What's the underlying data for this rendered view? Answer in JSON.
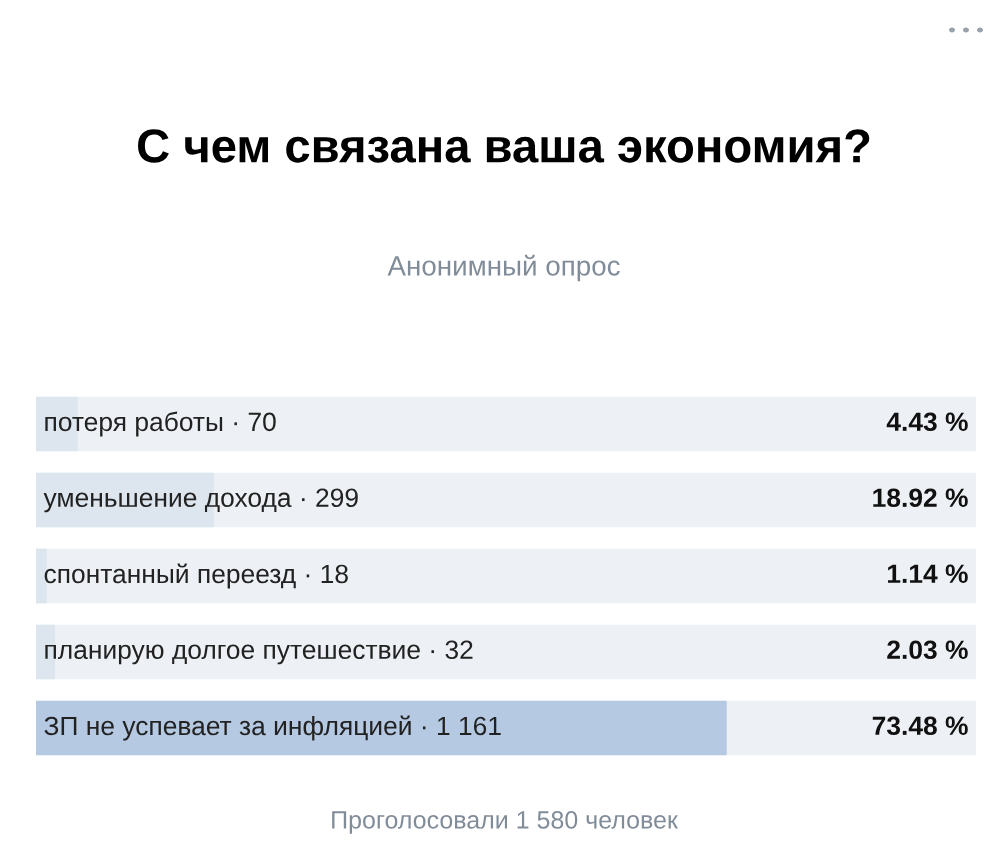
{
  "chart_data": {
    "type": "bar",
    "orientation": "horizontal",
    "title": "С чем связана ваша экономия?",
    "subtitle": "Анонимный опрос",
    "categories": [
      "потеря работы · 70",
      "уменьшение дохода · 299",
      "спонтанный переезд · 18",
      "планирую долгое путешествие · 32",
      "ЗП не успевает за инфляцией · 1 161"
    ],
    "values": [
      4.43,
      18.92,
      1.14,
      2.03,
      73.48
    ],
    "value_labels": [
      "4.43 %",
      "18.92 %",
      "1.14 %",
      "2.03 %",
      "73.48 %"
    ],
    "colors": [
      "#dde5ef",
      "#dde5ef",
      "#dde5ef",
      "#dde5ef",
      "#b5c9e2"
    ],
    "xlim": [
      0,
      100
    ],
    "annotations": [
      "Проголосовали 1 580 человек"
    ]
  }
}
